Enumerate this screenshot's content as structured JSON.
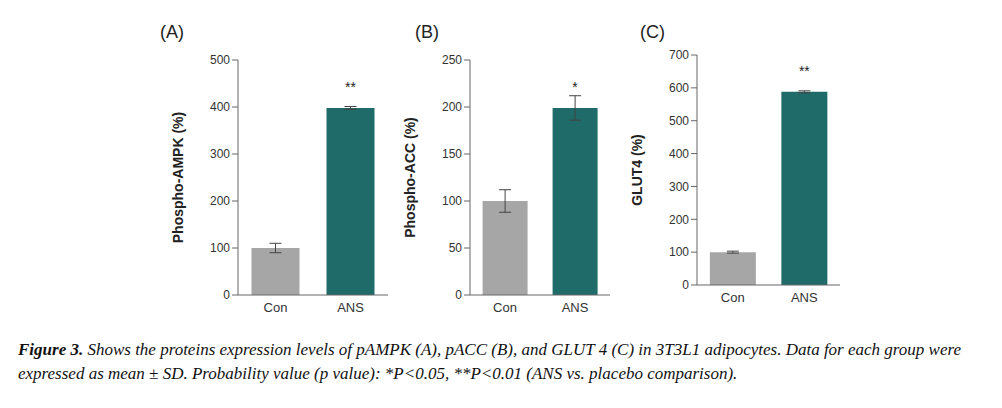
{
  "chart_data": [
    {
      "type": "bar",
      "title": "(A)",
      "y_label": "Phospho-AMPK (%)",
      "categories": [
        "Con",
        "ANS"
      ],
      "values": [
        100,
        398
      ],
      "errors": [
        10,
        3
      ],
      "colors": [
        "#a6a6a6",
        "#1e6b69"
      ],
      "ylim": [
        0,
        500
      ],
      "yticks": [
        0,
        100,
        200,
        300,
        400,
        500
      ],
      "annotations": [
        {
          "category": "ANS",
          "text": "**"
        }
      ]
    },
    {
      "type": "bar",
      "title": "(B)",
      "y_label": "Phospho-ACC (%)",
      "categories": [
        "Con",
        "ANS"
      ],
      "values": [
        100,
        199
      ],
      "errors": [
        12,
        13
      ],
      "colors": [
        "#a6a6a6",
        "#1e6b69"
      ],
      "ylim": [
        0,
        250
      ],
      "yticks": [
        0,
        50,
        100,
        150,
        200,
        250
      ],
      "annotations": [
        {
          "category": "ANS",
          "text": "*"
        }
      ]
    },
    {
      "type": "bar",
      "title": "(C)",
      "y_label": "GLUT4 (%)",
      "categories": [
        "Con",
        "ANS"
      ],
      "values": [
        100,
        588
      ],
      "errors": [
        3,
        3
      ],
      "colors": [
        "#a6a6a6",
        "#1e6b69"
      ],
      "ylim": [
        0,
        700
      ],
      "yticks": [
        0,
        100,
        200,
        300,
        400,
        500,
        600,
        700
      ],
      "annotations": [
        {
          "category": "ANS",
          "text": "**"
        }
      ]
    }
  ],
  "caption": {
    "label": "Figure 3.",
    "text": "Shows the proteins expression levels of pAMPK (A), pACC (B), and GLUT 4 (C) in 3T3L1 adipocytes. Data for each group were expressed as mean ± SD. Probability value (p value): *P<0.05, **P<0.01 (ANS vs. placebo comparison)."
  }
}
